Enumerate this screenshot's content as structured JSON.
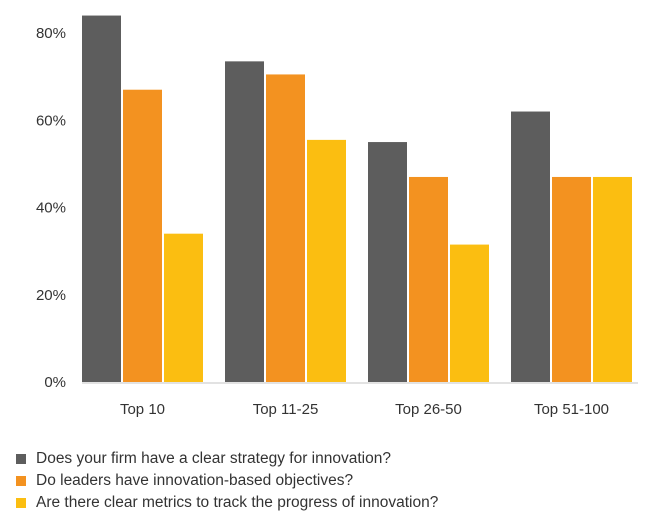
{
  "chart_data": {
    "type": "bar",
    "categories": [
      "Top 10",
      "Top 11-25",
      "Top 26-50",
      "Top 51-100"
    ],
    "series": [
      {
        "name": "Does your firm have a clear strategy for innovation?",
        "color": "#5d5d5d",
        "values": [
          84,
          73.5,
          55,
          62
        ]
      },
      {
        "name": "Do leaders have innovation-based objectives?",
        "color": "#f39220",
        "values": [
          67,
          70.5,
          47,
          47
        ]
      },
      {
        "name": "Are there clear metrics to track the progress of innovation?",
        "color": "#fbbe11",
        "values": [
          34,
          55.5,
          31.5,
          47
        ]
      }
    ],
    "ylim": [
      0,
      80
    ],
    "yticks": [
      0,
      20,
      40,
      60,
      80
    ],
    "ytick_labels": [
      "0%",
      "20%",
      "40%",
      "60%",
      "80%"
    ],
    "grid": false,
    "legend_position": "bottom-left"
  }
}
